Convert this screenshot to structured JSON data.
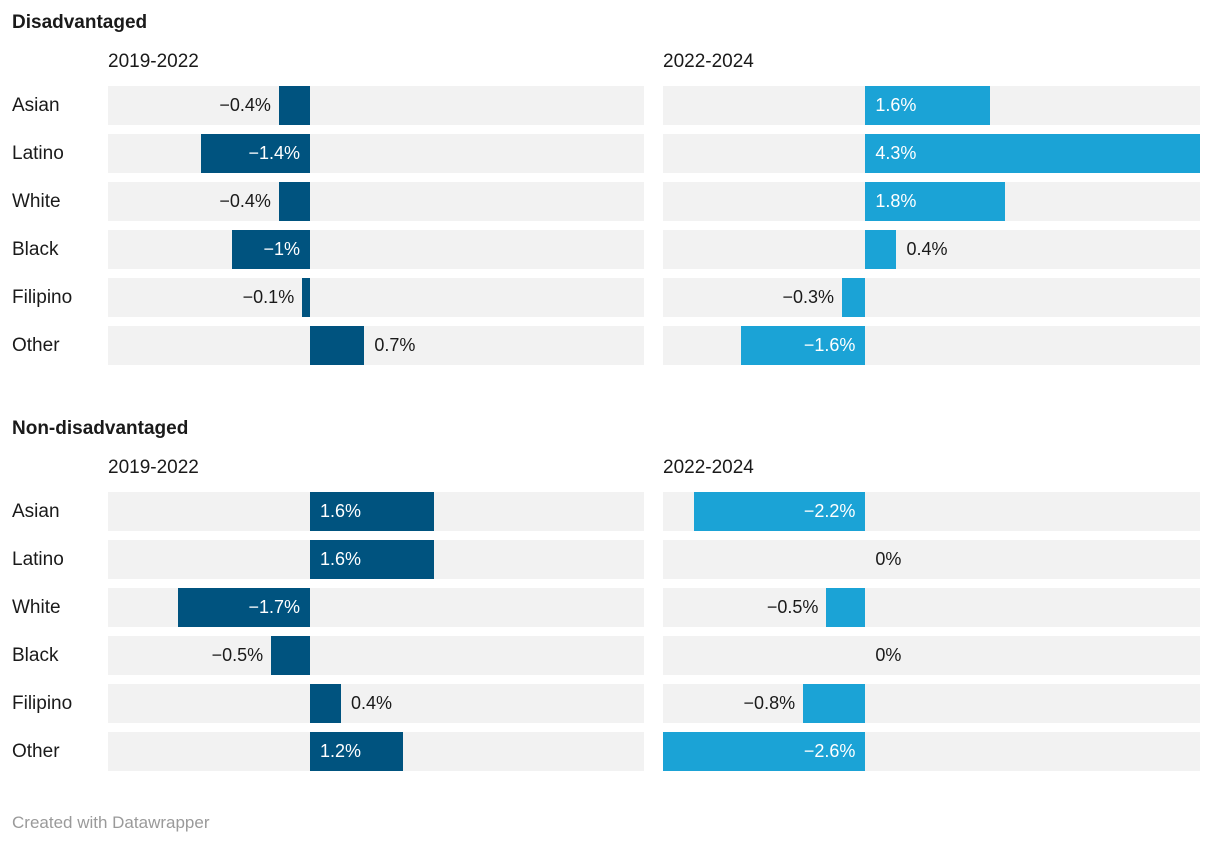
{
  "footer": {
    "credit": "Created with Datawrapper"
  },
  "colors": {
    "series_2019_2022": "#00537f",
    "series_2022_2024": "#1ba3d6",
    "track": "#f2f2f2",
    "text": "#1a1a1a",
    "inside_label": "#ffffff",
    "credit_text": "#9a9a9a"
  },
  "chart_data": [
    {
      "type": "bar",
      "orientation": "horizontal",
      "title": "Disadvantaged",
      "categories": [
        "Asian",
        "Latino",
        "White",
        "Black",
        "Filipino",
        "Other"
      ],
      "xlim": [
        -2.6,
        4.3
      ],
      "grid": false,
      "value_suffix": "%",
      "series": [
        {
          "name": "2019-2022",
          "color": "#00537f",
          "values": [
            -0.4,
            -1.4,
            -0.4,
            -1,
            -0.1,
            0.7
          ],
          "labels": [
            "−0.4%",
            "−1.4%",
            "−0.4%",
            "−1%",
            "−0.1%",
            "0.7%"
          ],
          "label_placement": [
            "outside",
            "inside",
            "outside",
            "inside",
            "outside",
            "outside"
          ]
        },
        {
          "name": "2022-2024",
          "color": "#1ba3d6",
          "values": [
            1.6,
            4.3,
            1.8,
            0.4,
            -0.3,
            -1.6
          ],
          "labels": [
            "1.6%",
            "4.3%",
            "1.8%",
            "0.4%",
            "−0.3%",
            "−1.6%"
          ],
          "label_placement": [
            "inside",
            "inside",
            "inside",
            "outside",
            "outside",
            "inside"
          ]
        }
      ]
    },
    {
      "type": "bar",
      "orientation": "horizontal",
      "title": "Non-disadvantaged",
      "categories": [
        "Asian",
        "Latino",
        "White",
        "Black",
        "Filipino",
        "Other"
      ],
      "xlim": [
        -2.6,
        4.3
      ],
      "grid": false,
      "value_suffix": "%",
      "series": [
        {
          "name": "2019-2022",
          "color": "#00537f",
          "values": [
            1.6,
            1.6,
            -1.7,
            -0.5,
            0.4,
            1.2
          ],
          "labels": [
            "1.6%",
            "1.6%",
            "−1.7%",
            "−0.5%",
            "0.4%",
            "1.2%"
          ],
          "label_placement": [
            "inside",
            "inside",
            "inside",
            "outside",
            "outside",
            "inside"
          ]
        },
        {
          "name": "2022-2024",
          "color": "#1ba3d6",
          "values": [
            -2.2,
            0,
            -0.5,
            0,
            -0.8,
            -2.6
          ],
          "labels": [
            "−2.2%",
            "0%",
            "−0.5%",
            "0%",
            "−0.8%",
            "−2.6%"
          ],
          "label_placement": [
            "inside",
            "outside",
            "outside",
            "outside",
            "outside",
            "inside"
          ]
        }
      ]
    }
  ]
}
